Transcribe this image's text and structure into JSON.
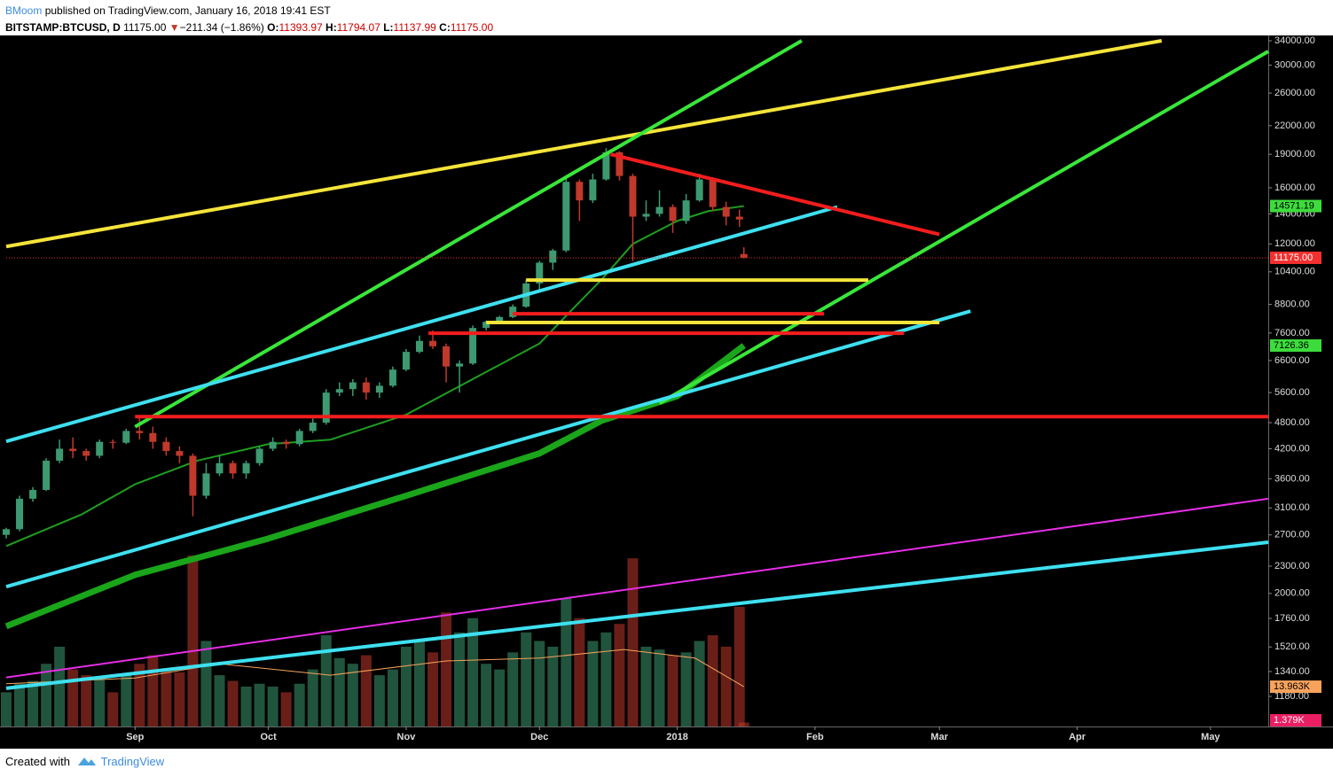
{
  "header": {
    "author": "BMoom",
    "published": "published on TradingView.com, January 16, 2018 19:41 EST",
    "symbol": "BITSTAMP:BTCUSD, D",
    "price": "11175.00",
    "arrow": "▼",
    "change": "−211.34 (−1.86%)",
    "ohlc": [
      {
        "key": "O:",
        "value": "11393.97"
      },
      {
        "key": "H:",
        "value": "11794.07"
      },
      {
        "key": "L:",
        "value": "11137.99"
      },
      {
        "key": "C:",
        "value": "11175.00"
      }
    ]
  },
  "footer": {
    "created": "Created with",
    "brand": "TradingView"
  },
  "chart_data": {
    "type": "candlestick",
    "log_scale": true,
    "grid": false,
    "up_color": "#3d9970",
    "down_color": "#c0392b",
    "xlim": [
      "2017-08-03",
      "2018-05-14"
    ],
    "xticks": [
      {
        "value": "2017-09-01",
        "label": "Sep"
      },
      {
        "value": "2017-10-01",
        "label": "Oct"
      },
      {
        "value": "2017-11-01",
        "label": "Nov"
      },
      {
        "value": "2017-12-01",
        "label": "Dec"
      },
      {
        "value": "2018-01-01",
        "label": "2018"
      },
      {
        "value": "2018-02-01",
        "label": "Feb"
      },
      {
        "value": "2018-03-01",
        "label": "Mar"
      },
      {
        "value": "2018-04-01",
        "label": "Apr"
      },
      {
        "value": "2018-05-01",
        "label": "May"
      }
    ],
    "ylim": [
      1011,
      34940
    ],
    "yticks": [
      {
        "value": 1180,
        "label": "1180.00"
      },
      {
        "value": 1340,
        "label": "1340.00"
      },
      {
        "value": 1520,
        "label": "1520.00"
      },
      {
        "value": 1760,
        "label": "1760.00"
      },
      {
        "value": 2000,
        "label": "2000.00"
      },
      {
        "value": 2300,
        "label": "2300.00"
      },
      {
        "value": 2700,
        "label": "2700.00"
      },
      {
        "value": 3100,
        "label": "3100.00"
      },
      {
        "value": 3600,
        "label": "3600.00"
      },
      {
        "value": 4200,
        "label": "4200.00"
      },
      {
        "value": 4800,
        "label": "4800.00"
      },
      {
        "value": 5600,
        "label": "5600.00"
      },
      {
        "value": 6600,
        "label": "6600.00"
      },
      {
        "value": 7600,
        "label": "7600.00"
      },
      {
        "value": 8800,
        "label": "8800.00"
      },
      {
        "value": 10400,
        "label": "10400.00"
      },
      {
        "value": 12000,
        "label": "12000.00"
      },
      {
        "value": 14000,
        "label": "14000.00"
      },
      {
        "value": 16000,
        "label": "16000.00"
      },
      {
        "value": 19000,
        "label": "19000.00"
      },
      {
        "value": 22000,
        "label": "22000.00"
      },
      {
        "value": 26000,
        "label": "26000.00"
      },
      {
        "value": 30000,
        "label": "30000.00"
      },
      {
        "value": 34000,
        "label": "34000.00"
      }
    ],
    "dates": [
      "2017-08-03",
      "2017-08-06",
      "2017-08-09",
      "2017-08-12",
      "2017-08-15",
      "2017-08-18",
      "2017-08-21",
      "2017-08-24",
      "2017-08-27",
      "2017-08-30",
      "2017-09-02",
      "2017-09-05",
      "2017-09-08",
      "2017-09-11",
      "2017-09-14",
      "2017-09-17",
      "2017-09-20",
      "2017-09-23",
      "2017-09-26",
      "2017-09-29",
      "2017-10-02",
      "2017-10-05",
      "2017-10-08",
      "2017-10-11",
      "2017-10-14",
      "2017-10-17",
      "2017-10-20",
      "2017-10-23",
      "2017-10-26",
      "2017-10-29",
      "2017-11-01",
      "2017-11-04",
      "2017-11-07",
      "2017-11-10",
      "2017-11-13",
      "2017-11-16",
      "2017-11-19",
      "2017-11-22",
      "2017-11-25",
      "2017-11-28",
      "2017-12-01",
      "2017-12-04",
      "2017-12-07",
      "2017-12-10",
      "2017-12-13",
      "2017-12-16",
      "2017-12-19",
      "2017-12-22",
      "2017-12-25",
      "2017-12-28",
      "2017-12-31",
      "2018-01-03",
      "2018-01-06",
      "2018-01-09",
      "2018-01-12",
      "2018-01-15",
      "2018-01-16"
    ],
    "open": [
      2700,
      2780,
      3250,
      3400,
      3950,
      4200,
      4150,
      4050,
      4350,
      4330,
      4600,
      4550,
      4350,
      4150,
      4050,
      3300,
      3700,
      3900,
      3700,
      3900,
      4200,
      4350,
      4300,
      4600,
      4800,
      5600,
      5700,
      5900,
      5600,
      5800,
      6300,
      6900,
      7300,
      7100,
      6400,
      6500,
      7800,
      8050,
      8250,
      8700,
      9800,
      10900,
      11600,
      16500,
      15000,
      16700,
      19200,
      17000,
      13800,
      14000,
      14500,
      13500,
      15000,
      16700,
      14500,
      13800,
      11393.97
    ],
    "high": [
      2800,
      3300,
      3450,
      4000,
      4400,
      4450,
      4200,
      4400,
      4400,
      4650,
      4950,
      4700,
      4450,
      4250,
      4100,
      3900,
      4050,
      3950,
      3950,
      4250,
      4450,
      4400,
      4650,
      4900,
      5700,
      5900,
      6000,
      6050,
      5900,
      6400,
      7000,
      7500,
      7700,
      7200,
      6600,
      7900,
      8100,
      8300,
      8800,
      10000,
      11000,
      11700,
      16800,
      16700,
      17200,
      19600,
      19300,
      17200,
      15000,
      15800,
      14700,
      15500,
      17200,
      16900,
      14900,
      14300,
      11794.07
    ],
    "low": [
      2650,
      2750,
      3200,
      3380,
      3900,
      4000,
      3950,
      4000,
      4200,
      4300,
      4400,
      4200,
      4050,
      3900,
      2970,
      3250,
      3650,
      3600,
      3600,
      3850,
      4150,
      4200,
      4250,
      4550,
      4750,
      5500,
      5500,
      5400,
      5450,
      5750,
      6250,
      6850,
      7000,
      5900,
      5600,
      6450,
      7700,
      8000,
      8200,
      8650,
      9500,
      10500,
      11500,
      13500,
      14800,
      16600,
      16600,
      11000,
      13500,
      13800,
      12700,
      13300,
      14900,
      14200,
      13200,
      13100,
      11137.99
    ],
    "close": [
      2780,
      3250,
      3400,
      3950,
      4200,
      4150,
      4050,
      4350,
      4330,
      4600,
      4550,
      4350,
      4150,
      4050,
      3300,
      3700,
      3900,
      3700,
      3900,
      4200,
      4350,
      4300,
      4600,
      4800,
      5600,
      5700,
      5900,
      5600,
      5800,
      6300,
      6900,
      7300,
      7100,
      6400,
      6500,
      7800,
      8050,
      8250,
      8700,
      9800,
      10900,
      11600,
      16500,
      15000,
      16700,
      19200,
      17000,
      13800,
      14000,
      14500,
      13500,
      15000,
      16700,
      14500,
      13800,
      13600,
      11175
    ],
    "volume": [
      12000,
      15000,
      16000,
      22000,
      28000,
      20000,
      18000,
      17000,
      12000,
      18000,
      22000,
      25000,
      20000,
      19000,
      60000,
      30000,
      18000,
      16000,
      14000,
      15000,
      14000,
      12000,
      15000,
      20000,
      32000,
      24000,
      22000,
      25000,
      18000,
      20000,
      28000,
      30000,
      26000,
      40000,
      33000,
      38000,
      22000,
      20000,
      26000,
      33000,
      30000,
      28000,
      45000,
      38000,
      30000,
      33000,
      36000,
      59000,
      28000,
      27000,
      25000,
      26000,
      30000,
      32000,
      28000,
      42000,
      1379
    ],
    "vlim": [
      0,
      80800
    ],
    "volume_ma": {
      "color": "#f7a35c",
      "x": [
        "2017-08-03",
        "2017-09-01",
        "2017-09-20",
        "2017-10-15",
        "2017-11-10",
        "2017-12-01",
        "2017-12-20",
        "2018-01-05",
        "2018-01-16"
      ],
      "values": [
        15000,
        17000,
        22000,
        18000,
        23000,
        24000,
        27000,
        24000,
        13963
      ]
    },
    "volume_labels": [
      {
        "value": 13963,
        "label": "13.963K",
        "color": "#f7a35c",
        "text_color": "#000"
      },
      {
        "value": 1379,
        "label": "1.379K",
        "color": "#e91e63",
        "text_color": "#fff"
      }
    ],
    "moving_averages": [
      {
        "color": "#1e9e1e",
        "width": 2,
        "x": [
          "2017-08-03",
          "2017-08-20",
          "2017-09-01",
          "2017-09-15",
          "2017-10-01",
          "2017-10-15",
          "2017-11-01",
          "2017-11-16",
          "2017-12-01",
          "2017-12-08",
          "2017-12-15",
          "2017-12-22",
          "2018-01-01",
          "2018-01-08",
          "2018-01-16"
        ],
        "values": [
          2550,
          3000,
          3500,
          3950,
          4300,
          4400,
          5000,
          6000,
          7200,
          8500,
          10000,
          12000,
          13500,
          14200,
          14571.19
        ]
      },
      {
        "color": "#1aa51a",
        "width": 7,
        "x": [
          "2017-08-03",
          "2017-09-01",
          "2017-10-01",
          "2017-11-01",
          "2017-12-01",
          "2017-12-15",
          "2018-01-01",
          "2018-01-16"
        ],
        "values": [
          1690,
          2200,
          2650,
          3300,
          4100,
          4850,
          5500,
          7126.36
        ]
      }
    ],
    "last_price": {
      "value": 11175,
      "label": "11175.00",
      "color": "#f23030"
    },
    "lines": [
      {
        "color": "#f5e43a",
        "width": 4,
        "x": [
          "2017-08-03",
          "2018-04-20"
        ],
        "y": [
          11840,
          34000
        ]
      },
      {
        "color": "#39e639",
        "width": 4,
        "x": [
          "2017-09-01",
          "2018-01-29"
        ],
        "y": [
          4700,
          34000
        ]
      },
      {
        "color": "#39e639",
        "width": 4,
        "x": [
          "2017-12-28",
          "2018-05-14"
        ],
        "y": [
          5300,
          32200
        ]
      },
      {
        "color": "#3ee0f0",
        "width": 4,
        "x": [
          "2017-08-03",
          "2018-02-06"
        ],
        "y": [
          4360,
          14500
        ]
      },
      {
        "color": "#3ee0f0",
        "width": 4,
        "x": [
          "2017-08-03",
          "2018-03-08"
        ],
        "y": [
          2070,
          8500
        ]
      },
      {
        "color": "#3ee0f0",
        "width": 4,
        "x": [
          "2017-08-03",
          "2018-05-14"
        ],
        "y": [
          1230,
          2600
        ]
      },
      {
        "color": "#e62ee6",
        "width": 2,
        "x": [
          "2017-08-03",
          "2018-05-14"
        ],
        "y": [
          1300,
          3250
        ]
      },
      {
        "color": "#f21d1d",
        "width": 4,
        "x": [
          "2017-12-17",
          "2018-03-01"
        ],
        "y": [
          19000,
          12600
        ]
      },
      {
        "color": "#f21d1d",
        "width": 4,
        "x": [
          "2017-09-01",
          "2018-05-14"
        ],
        "y": [
          4950,
          4950
        ]
      },
      {
        "color": "#f21d1d",
        "width": 4,
        "x": [
          "2017-11-25",
          "2018-02-03"
        ],
        "y": [
          8390,
          8390
        ]
      },
      {
        "color": "#f21d1d",
        "width": 4,
        "x": [
          "2017-11-06",
          "2018-02-21"
        ],
        "y": [
          7590,
          7590
        ]
      },
      {
        "color": "#f5e43a",
        "width": 4,
        "x": [
          "2017-11-28",
          "2018-02-13"
        ],
        "y": [
          9970,
          9970
        ]
      },
      {
        "color": "#f5e43a",
        "width": 4,
        "x": [
          "2017-11-19",
          "2018-03-01"
        ],
        "y": [
          8020,
          8020
        ]
      }
    ]
  }
}
